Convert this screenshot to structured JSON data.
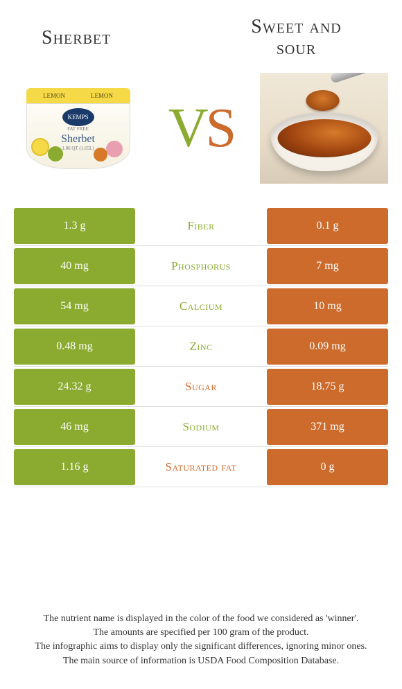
{
  "colors": {
    "left": "#8aab2f",
    "right": "#cc6b2c"
  },
  "titles": {
    "left": "Sherbet",
    "right_line1": "Sweet and",
    "right_line2": "sour"
  },
  "vs": {
    "v": "V",
    "s": "S"
  },
  "rows": [
    {
      "left": "1.3 g",
      "label": "Fiber",
      "right": "0.1 g",
      "winner": "left"
    },
    {
      "left": "40 mg",
      "label": "Phosphorus",
      "right": "7 mg",
      "winner": "left"
    },
    {
      "left": "54 mg",
      "label": "Calcium",
      "right": "10 mg",
      "winner": "left"
    },
    {
      "left": "0.48 mg",
      "label": "Zinc",
      "right": "0.09 mg",
      "winner": "left"
    },
    {
      "left": "24.32 g",
      "label": "Sugar",
      "right": "18.75 g",
      "winner": "right"
    },
    {
      "left": "46 mg",
      "label": "Sodium",
      "right": "371 mg",
      "winner": "left"
    },
    {
      "left": "1.16 g",
      "label": "Saturated fat",
      "right": "0 g",
      "winner": "right"
    }
  ],
  "footer": {
    "l1": "The nutrient name is displayed in the color of the food we considered as 'winner'.",
    "l2": "The amounts are specified per 100 gram of the product.",
    "l3": "The infographic aims to display only the significant differences, ignoring minor ones.",
    "l4": "The main source of information is USDA Food Composition Database."
  },
  "sherbet_cup": {
    "lid_text": "LEMON",
    "brand": "KEMPS",
    "tag": "FAT FREE",
    "name": "Sherbet",
    "size": "1.86 QT (1.65L)"
  }
}
